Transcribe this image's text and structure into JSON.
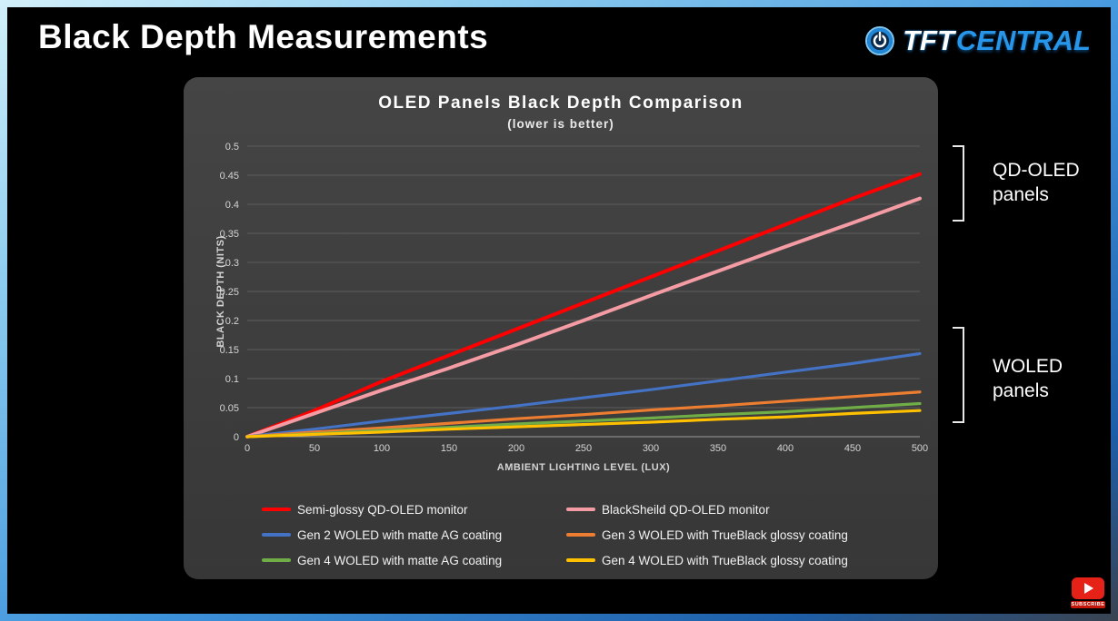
{
  "slide": {
    "title": "Black Depth Measurements"
  },
  "logo": {
    "tft": "TFT",
    "central": "CENTRAL",
    "accent_color": "#2796e8"
  },
  "chart_data": {
    "type": "line",
    "title": "OLED Panels Black Depth Comparison",
    "subtitle": "(lower is better)",
    "xlabel": "AMBIENT LIGHTING LEVEL (LUX)",
    "ylabel": "BLACK DEPTH (NITS)",
    "xlim": [
      0,
      500
    ],
    "ylim": [
      0,
      0.5
    ],
    "grid": true,
    "legend_position": "bottom",
    "x_ticks": [
      0,
      50,
      100,
      150,
      200,
      250,
      300,
      350,
      400,
      450,
      500
    ],
    "y_ticks": [
      0,
      0.05,
      0.1,
      0.15,
      0.2,
      0.25,
      0.3,
      0.35,
      0.4,
      0.45,
      0.5
    ],
    "y_tick_labels": [
      "0",
      "0.05",
      "0.1",
      "0.15",
      "0.2",
      "0.25",
      "0.3",
      "0.35",
      "0.4",
      "0.45",
      "0.5"
    ],
    "x": [
      0,
      50,
      100,
      150,
      200,
      250,
      300,
      350,
      400,
      450,
      500
    ],
    "series": [
      {
        "name": "Semi-glossy QD-OLED monitor",
        "color": "#fe0000",
        "values": [
          0,
          0.045,
          0.095,
          0.14,
          0.185,
          0.23,
          0.275,
          0.32,
          0.365,
          0.41,
          0.452
        ]
      },
      {
        "name": "BlackSheild QD-OLED monitor",
        "color": "#f59ba4",
        "values": [
          0,
          0.04,
          0.08,
          0.118,
          0.158,
          0.2,
          0.243,
          0.285,
          0.327,
          0.368,
          0.41
        ]
      },
      {
        "name": "Gen 2 WOLED with matte AG coating",
        "color": "#4472c4",
        "values": [
          0,
          0.013,
          0.027,
          0.04,
          0.053,
          0.067,
          0.081,
          0.096,
          0.111,
          0.126,
          0.143
        ]
      },
      {
        "name": "Gen 3 WOLED with TrueBlack glossy coating",
        "color": "#ed7d31",
        "values": [
          0,
          0.008,
          0.015,
          0.023,
          0.031,
          0.038,
          0.046,
          0.053,
          0.061,
          0.069,
          0.077
        ]
      },
      {
        "name": "Gen 4 WOLED with matte AG coating",
        "color": "#70ad47",
        "values": [
          0,
          0.005,
          0.011,
          0.016,
          0.022,
          0.027,
          0.032,
          0.038,
          0.043,
          0.05,
          0.057
        ]
      },
      {
        "name": "Gen 4 WOLED with TrueBlack glossy coating",
        "color": "#ffc000",
        "values": [
          0,
          0.004,
          0.008,
          0.013,
          0.017,
          0.021,
          0.025,
          0.03,
          0.034,
          0.04,
          0.045
        ]
      }
    ]
  },
  "annotations": {
    "qd": {
      "line1": "QD-OLED",
      "line2": "panels"
    },
    "woled": {
      "line1": "WOLED",
      "line2": "panels"
    }
  },
  "subscribe": {
    "label": "SUBSCRIBE"
  }
}
